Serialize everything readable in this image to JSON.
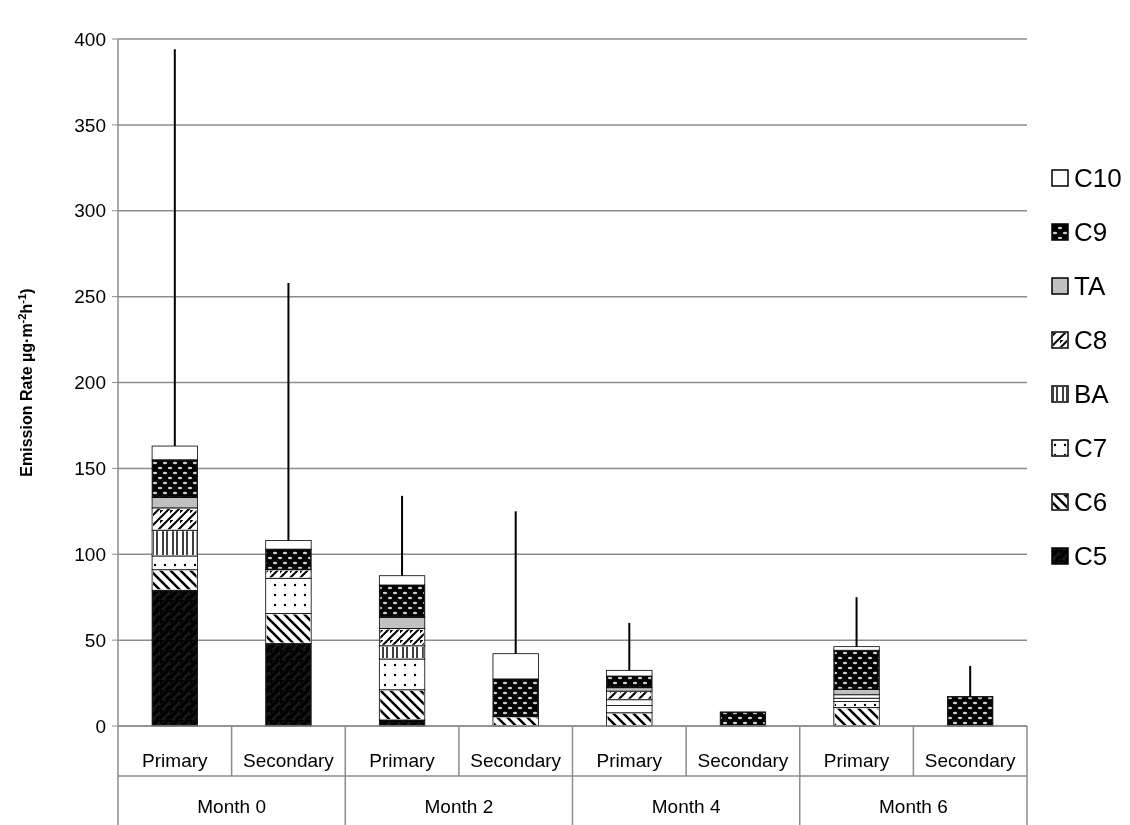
{
  "chart_data": {
    "type": "bar",
    "stacked": true,
    "ylabel": "Emission Rate µg·m$^{-2}$h$^{-1}$)",
    "categories": [
      "Primary",
      "Secondary",
      "Primary",
      "Secondary",
      "Primary",
      "Secondary",
      "Primary",
      "Secondary"
    ],
    "annotations": [
      "Month 0",
      "Month 2",
      "Month 4",
      "Month 6"
    ],
    "ylim": [
      0,
      400
    ],
    "yticks": [
      0,
      50,
      100,
      150,
      200,
      250,
      300,
      350,
      400
    ],
    "grid": "y",
    "legend": "right",
    "series": [
      {
        "name": "C5",
        "color": "#1a1a1a",
        "values": [
          79,
          48,
          3.5,
          0,
          0,
          0,
          0,
          0
        ]
      },
      {
        "name": "C6",
        "color": "#ffffff",
        "values": [
          12,
          17.5,
          17.6,
          5.4,
          7.7,
          0,
          10.7,
          0
        ]
      },
      {
        "name": "C7",
        "color": "#ffffff",
        "values": [
          8,
          20.5,
          17.9,
          0,
          4.2,
          0,
          3.5,
          0
        ]
      },
      {
        "name": "BA",
        "color": "#ffffff",
        "values": [
          15,
          0,
          7.7,
          0,
          3.4,
          0,
          2,
          0
        ]
      },
      {
        "name": "C8",
        "color": "#ffffff",
        "values": [
          13,
          5,
          10.1,
          0,
          5,
          0,
          2,
          0
        ]
      },
      {
        "name": "TA",
        "color": "#c0c0c0",
        "values": [
          6,
          0,
          6.5,
          0,
          2,
          0,
          3,
          0
        ]
      },
      {
        "name": "C9",
        "color": "#1a1a1a",
        "values": [
          22,
          12,
          18.8,
          22,
          6.8,
          8.2,
          22.9,
          17.2
        ]
      },
      {
        "name": "C10",
        "color": "#ffffff",
        "values": [
          8,
          5,
          5.4,
          14.7,
          3.3,
          0,
          2.1,
          0
        ],
        "errors": [
          [
            163,
            394
          ],
          [
            108,
            258
          ],
          [
            87.5,
            134
          ],
          [
            42.1,
            125
          ],
          [
            32.4,
            60
          ],
          null,
          [
            46.2,
            75
          ],
          [
            17.2,
            35
          ]
        ]
      }
    ]
  }
}
